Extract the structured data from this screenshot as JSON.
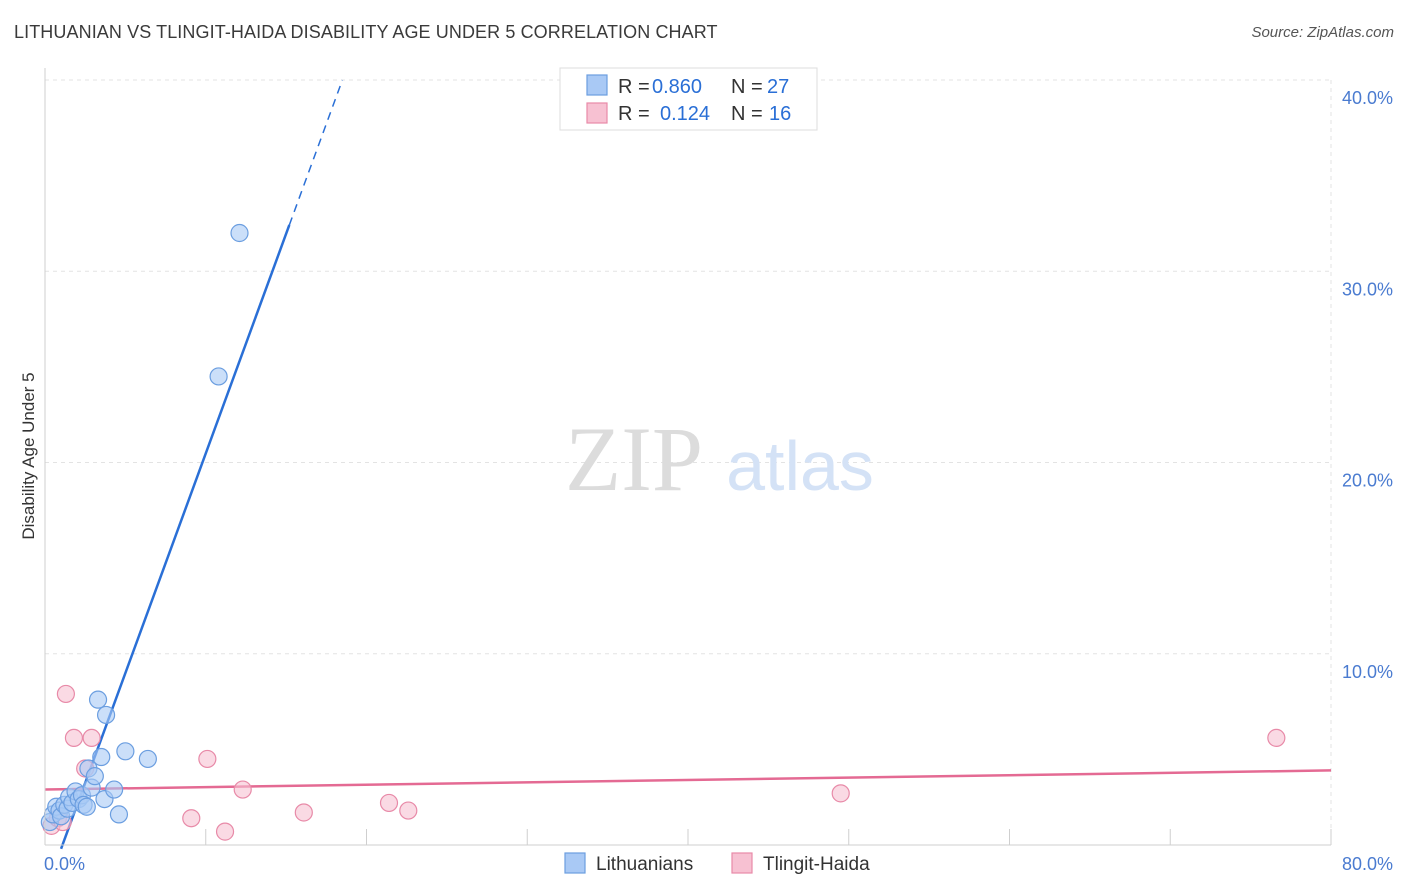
{
  "title": "LITHUANIAN VS TLINGIT-HAIDA DISABILITY AGE UNDER 5 CORRELATION CHART",
  "source": "Source: ZipAtlas.com",
  "watermark": {
    "zip": "ZIP",
    "atlas": "atlas"
  },
  "colors": {
    "blue_fill": "#a9c9f5",
    "blue_stroke": "#6b9ee0",
    "blue_line": "#2a6fd6",
    "pink_fill": "#f7c1d2",
    "pink_stroke": "#e88aa8",
    "pink_line": "#e46a93",
    "tick_text": "#4a7bd0",
    "grid": "#e3e3e3"
  },
  "legend": {
    "rows": [
      {
        "r_label": "R =",
        "r_value": "0.860",
        "n_label": "N =",
        "n_value": "27",
        "series": "blue"
      },
      {
        "r_label": "R =",
        "r_value": "0.124",
        "n_label": "N =",
        "n_value": "16",
        "series": "pink"
      }
    ]
  },
  "chart_data": {
    "type": "scatter",
    "title": "LITHUANIAN VS TLINGIT-HAIDA DISABILITY AGE UNDER 5 CORRELATION CHART",
    "xlabel": "",
    "ylabel": "Disability Age Under 5",
    "xlim": [
      0,
      80
    ],
    "ylim": [
      0,
      40
    ],
    "x_tick_labels": [
      "0.0%",
      "80.0%"
    ],
    "y_ticks": [
      10,
      20,
      30,
      40
    ],
    "y_tick_labels": [
      "10.0%",
      "20.0%",
      "30.0%",
      "40.0%"
    ],
    "grid": true,
    "legend_position": "top-center",
    "series": [
      {
        "name": "Lithuanians",
        "color": "#a9c9f5",
        "points": [
          [
            0.3,
            1.2
          ],
          [
            0.5,
            1.6
          ],
          [
            0.7,
            2.0
          ],
          [
            0.9,
            1.8
          ],
          [
            1.0,
            1.5
          ],
          [
            1.2,
            2.1
          ],
          [
            1.4,
            1.9
          ],
          [
            1.5,
            2.5
          ],
          [
            1.7,
            2.2
          ],
          [
            1.9,
            2.8
          ],
          [
            2.1,
            2.4
          ],
          [
            2.3,
            2.6
          ],
          [
            2.4,
            2.1
          ],
          [
            2.6,
            2.0
          ],
          [
            2.7,
            4.0
          ],
          [
            2.9,
            3.0
          ],
          [
            3.1,
            3.6
          ],
          [
            3.3,
            7.6
          ],
          [
            3.5,
            4.6
          ],
          [
            3.7,
            2.4
          ],
          [
            3.8,
            6.8
          ],
          [
            4.3,
            2.9
          ],
          [
            4.6,
            1.6
          ],
          [
            5.0,
            4.9
          ],
          [
            6.4,
            4.5
          ],
          [
            10.8,
            24.5
          ],
          [
            12.1,
            32.0
          ]
        ],
        "trend": {
          "x": [
            1.0,
            18.5
          ],
          "y": [
            -0.2,
            40.0
          ],
          "solid_until_x": 15.2
        }
      },
      {
        "name": "Tlingit-Haida",
        "color": "#f7c1d2",
        "points": [
          [
            0.4,
            1.0
          ],
          [
            0.8,
            1.4
          ],
          [
            1.1,
            1.2
          ],
          [
            1.3,
            7.9
          ],
          [
            1.8,
            5.6
          ],
          [
            2.5,
            4.0
          ],
          [
            2.9,
            5.6
          ],
          [
            9.1,
            1.4
          ],
          [
            10.1,
            4.5
          ],
          [
            11.2,
            0.7
          ],
          [
            12.3,
            2.9
          ],
          [
            16.1,
            1.7
          ],
          [
            21.4,
            2.2
          ],
          [
            22.6,
            1.8
          ],
          [
            49.5,
            2.7
          ],
          [
            76.6,
            5.6
          ]
        ],
        "trend": {
          "x": [
            0.0,
            80.0
          ],
          "y": [
            2.9,
            3.9
          ]
        }
      }
    ]
  }
}
